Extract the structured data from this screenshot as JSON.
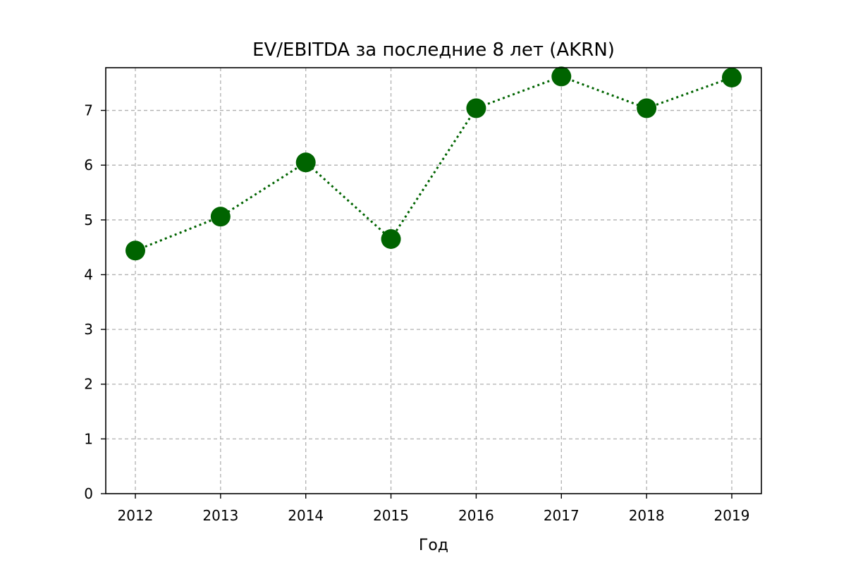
{
  "chart_data": {
    "type": "line",
    "title": "EV/EBITDA за последние 8 лет (AKRN)",
    "xlabel": "Год",
    "ylabel": "",
    "x": [
      "2012",
      "2013",
      "2014",
      "2015",
      "2016",
      "2017",
      "2018",
      "2019"
    ],
    "series": [
      {
        "values": [
          4.44,
          5.06,
          6.05,
          4.65,
          7.04,
          7.62,
          7.04,
          7.6
        ]
      }
    ],
    "yticks": [
      "0",
      "1",
      "2",
      "3",
      "4",
      "5",
      "6",
      "7"
    ],
    "ylim": [
      0,
      7.78
    ],
    "grid": true,
    "line_style": "dotted",
    "marker": "circle",
    "colors": {
      "series": "#006400",
      "grid": "#b0b0b0",
      "axes": "#000000"
    }
  }
}
